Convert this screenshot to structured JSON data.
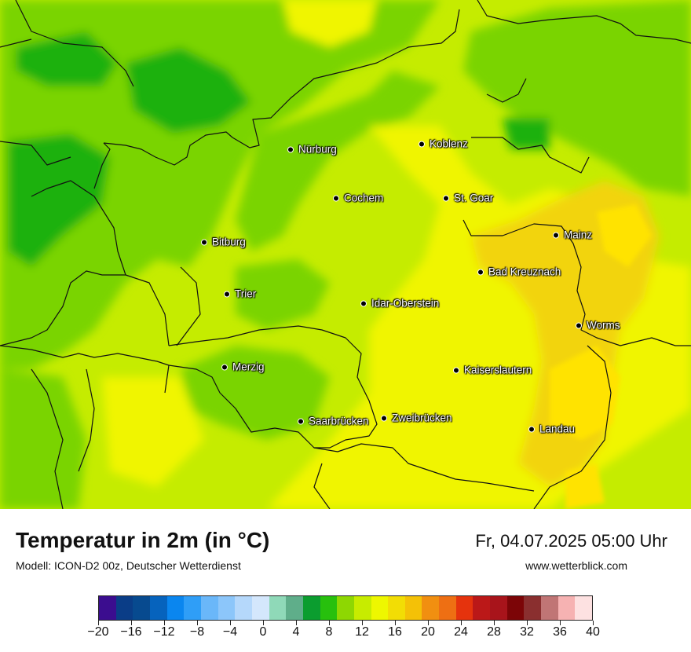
{
  "map": {
    "cities": [
      {
        "name": "Nürburg"
      },
      {
        "name": "Koblenz"
      },
      {
        "name": "Cochem"
      },
      {
        "name": "St. Goar"
      },
      {
        "name": "Mainz"
      },
      {
        "name": "Bitburg"
      },
      {
        "name": "Bad Kreuznach"
      },
      {
        "name": "Trier"
      },
      {
        "name": "Idar-Oberstein"
      },
      {
        "name": "Worms"
      },
      {
        "name": "Merzig"
      },
      {
        "name": "Kaiserslautern"
      },
      {
        "name": "Saarbrücken"
      },
      {
        "name": "Zweibrücken"
      },
      {
        "name": "Landau"
      }
    ],
    "colors": {
      "cool_green": "#1db10f",
      "green": "#7ad402",
      "yellow_green": "#c5ec00",
      "yellow": "#f0f500",
      "warm_yellow": "#ffe300",
      "orange_yellow": "#f2d40f"
    }
  },
  "footer": {
    "title": "Temperatur in 2m (in °C)",
    "subtitle": "Modell: ICON-D2 00z, Deutscher Wetterdienst",
    "datetime": "Fr, 04.07.2025 05:00 Uhr",
    "website": "www.wetterblick.com"
  },
  "legend": {
    "min": -20,
    "max": 40,
    "labels": [
      "−20",
      "−16",
      "−12",
      "−8",
      "−4",
      "0",
      "4",
      "8",
      "12",
      "16",
      "20",
      "24",
      "28",
      "32",
      "36",
      "40"
    ],
    "colors": [
      "#3b0d8f",
      "#0a3d87",
      "#074a8f",
      "#0663bd",
      "#0a86ef",
      "#2f9ef7",
      "#6ab7f9",
      "#8cc6fa",
      "#b5d8fb",
      "#d4e7fc",
      "#8fd9b8",
      "#5fae8a",
      "#0b9d2f",
      "#27c00d",
      "#8ed702",
      "#c7ec00",
      "#eef700",
      "#f2dd05",
      "#f4c107",
      "#f18f10",
      "#ee6f13",
      "#e5330d",
      "#bb1818",
      "#a8141b",
      "#7c0507",
      "#8a2f2f",
      "#c07575",
      "#f6b2b2",
      "#fde1e1"
    ]
  }
}
